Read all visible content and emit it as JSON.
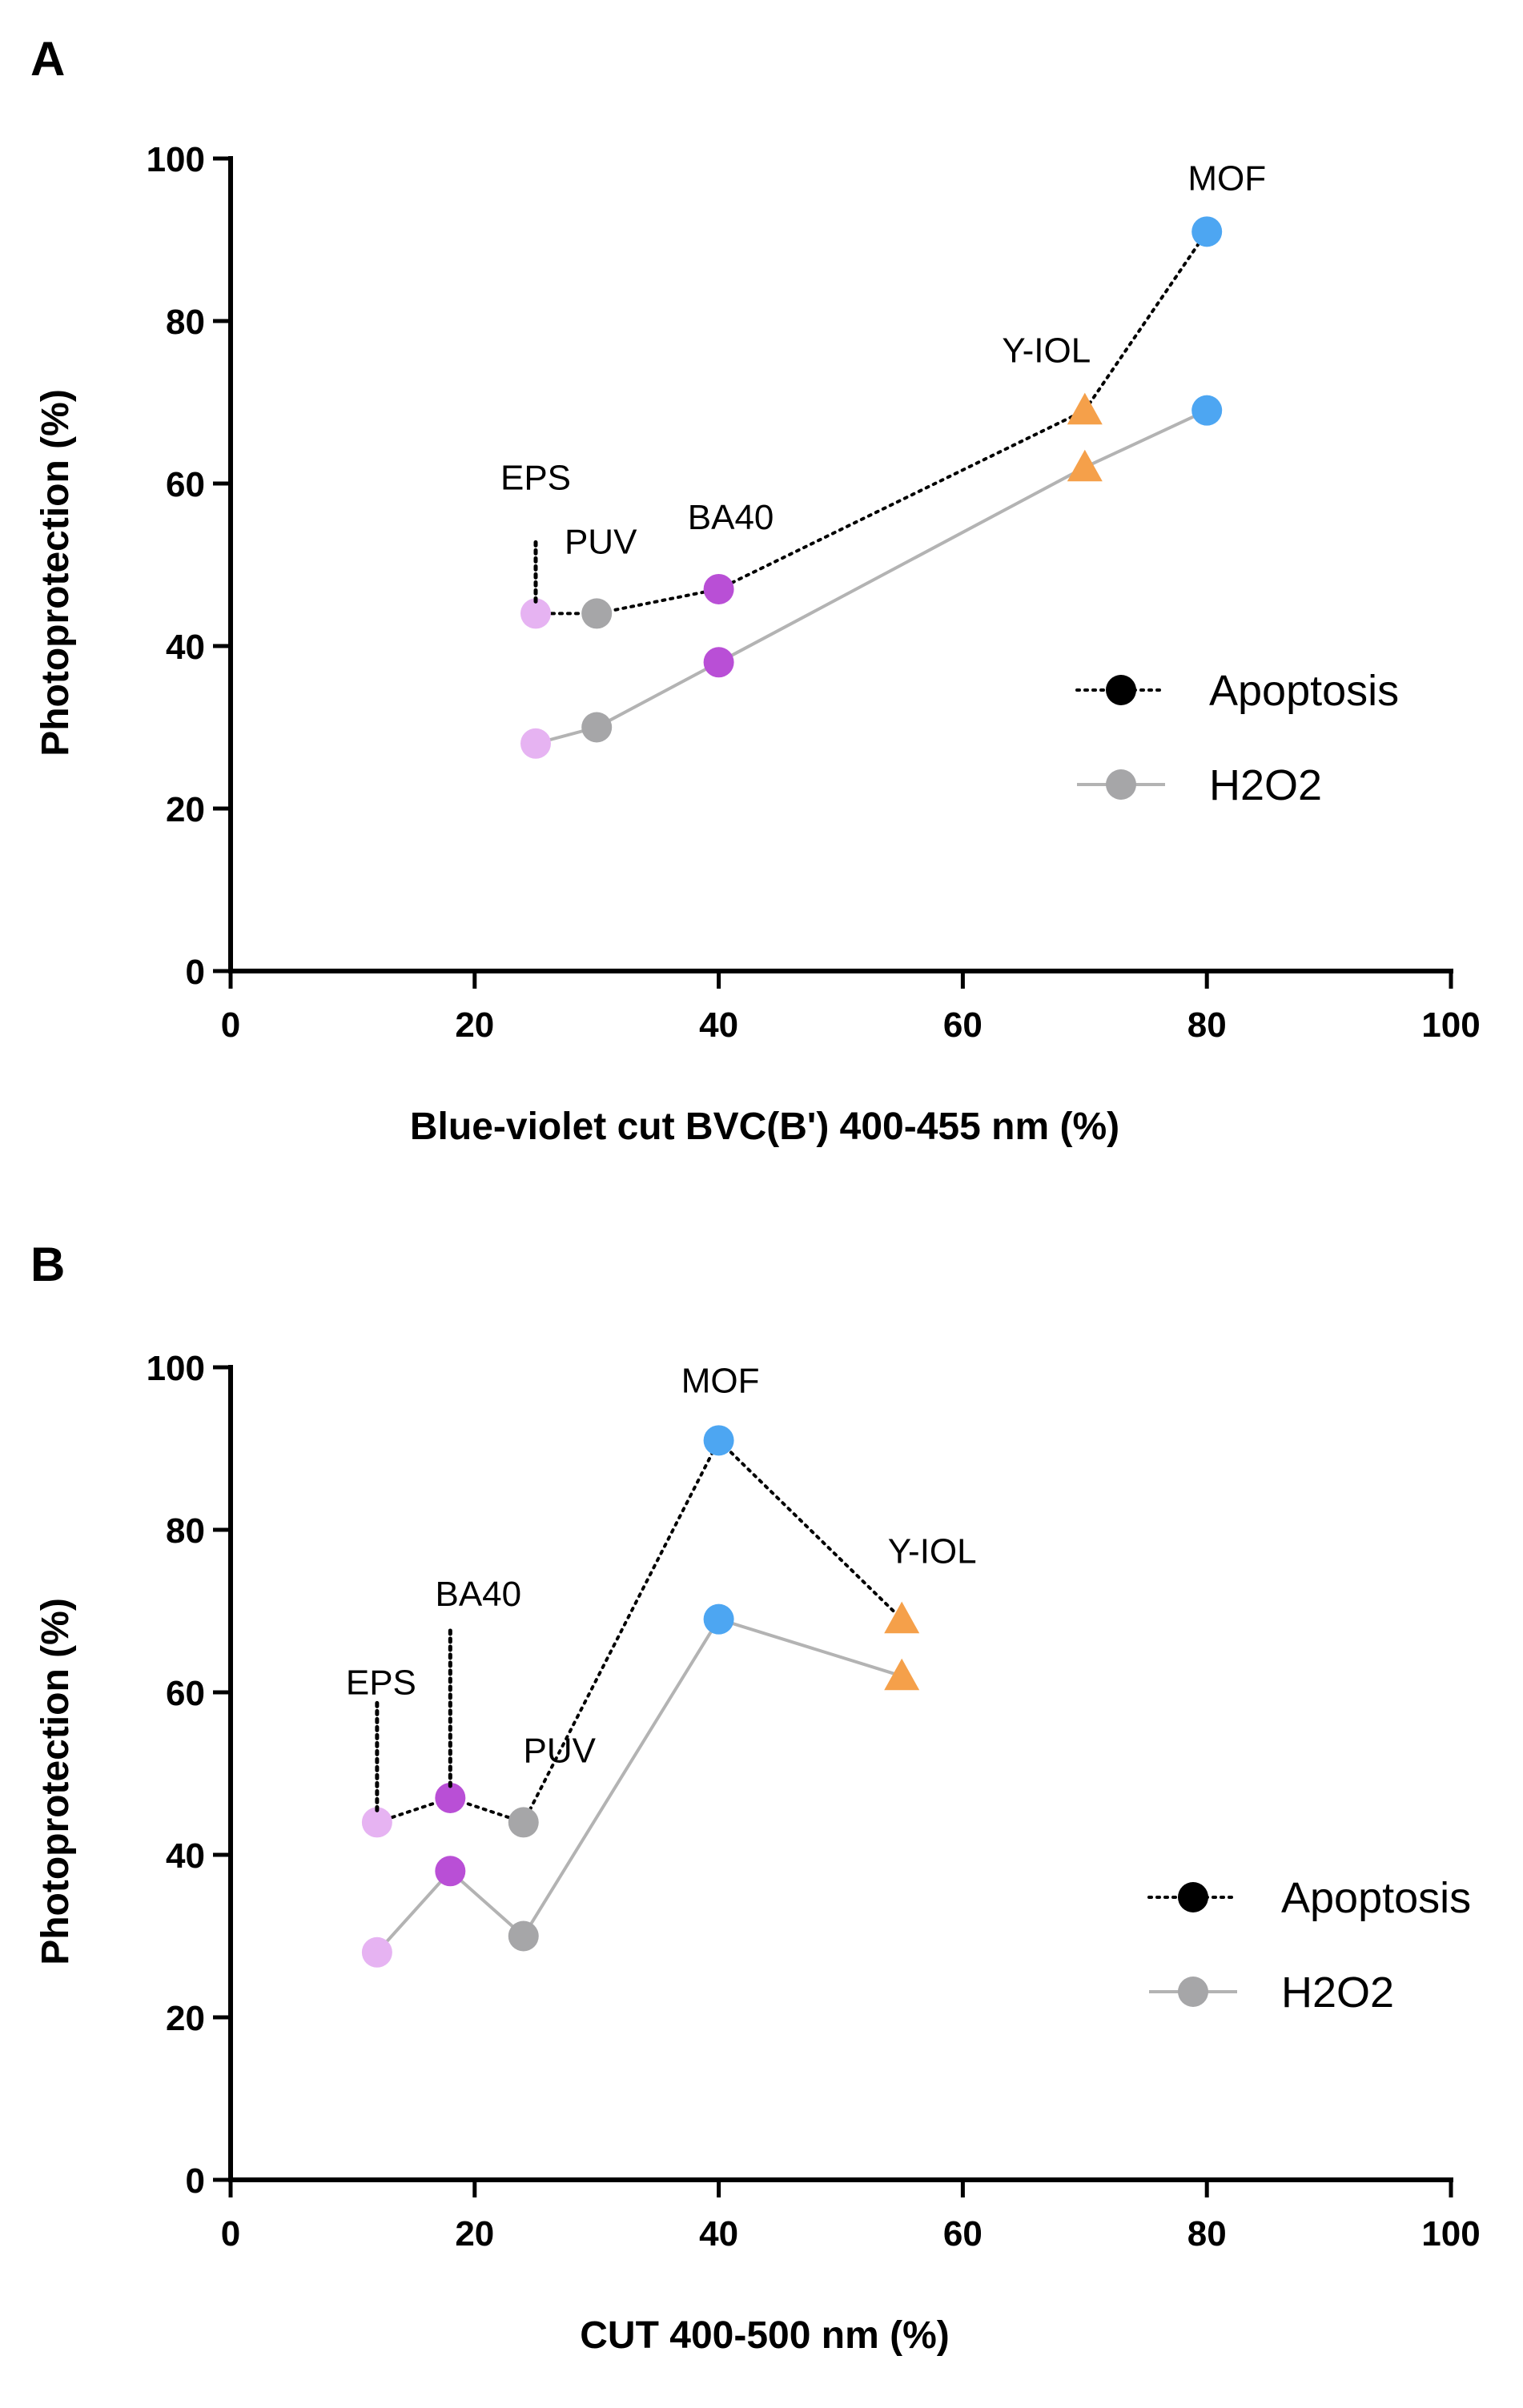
{
  "colors": {
    "EPS": "#E6B3F2",
    "PUV": "#A6A6A8",
    "BA40": "#B94FD6",
    "Y-IOL": "#F5A04A",
    "MOF": "#4DA6F2",
    "apoptosis_line": "#000000",
    "h2o2_line": "#B3B3B3",
    "legend_apoptosis_marker": "#000000",
    "legend_h2o2_marker": "#A6A6A8"
  },
  "chart_data": [
    {
      "panel": "A",
      "type": "line",
      "xlabel": "Blue-violet cut BVC(B') 400-455 nm (%)",
      "ylabel": "Photoprotection (%)",
      "xlim": [
        0,
        100
      ],
      "ylim": [
        0,
        100
      ],
      "xticks": [
        "0",
        "20",
        "40",
        "60",
        "80",
        "100"
      ],
      "yticks": [
        "0",
        "20",
        "40",
        "60",
        "80",
        "100"
      ],
      "legend_position": "center-right",
      "legend": [
        "Apoptosis",
        "H2O2"
      ],
      "series": [
        {
          "name": "Apoptosis",
          "style": "dotted",
          "points": [
            {
              "lens": "EPS",
              "x": 25,
              "y": 44
            },
            {
              "lens": "PUV",
              "x": 30,
              "y": 44
            },
            {
              "lens": "BA40",
              "x": 40,
              "y": 47
            },
            {
              "lens": "Y-IOL",
              "x": 70,
              "y": 69
            },
            {
              "lens": "MOF",
              "x": 80,
              "y": 91
            }
          ]
        },
        {
          "name": "H2O2",
          "style": "solid",
          "points": [
            {
              "lens": "EPS",
              "x": 25,
              "y": 28
            },
            {
              "lens": "PUV",
              "x": 30,
              "y": 30
            },
            {
              "lens": "BA40",
              "x": 40,
              "y": 38
            },
            {
              "lens": "Y-IOL",
              "x": 70,
              "y": 62
            },
            {
              "lens": "MOF",
              "x": 80,
              "y": 69
            }
          ]
        }
      ],
      "annotations": [
        {
          "text": "EPS",
          "lens": "EPS"
        },
        {
          "text": "PUV",
          "lens": "PUV"
        },
        {
          "text": "BA40",
          "lens": "BA40"
        },
        {
          "text": "Y-IOL",
          "lens": "Y-IOL"
        },
        {
          "text": "MOF",
          "lens": "MOF"
        }
      ]
    },
    {
      "panel": "B",
      "type": "line",
      "xlabel": "CUT 400-500 nm (%)",
      "ylabel": "Photoprotection (%)",
      "xlim": [
        0,
        100
      ],
      "ylim": [
        0,
        100
      ],
      "xticks": [
        "0",
        "20",
        "40",
        "60",
        "80",
        "100"
      ],
      "yticks": [
        "0",
        "20",
        "40",
        "60",
        "80",
        "100"
      ],
      "legend_position": "bottom-right",
      "legend": [
        "Apoptosis",
        "H2O2"
      ],
      "series": [
        {
          "name": "Apoptosis",
          "style": "dotted",
          "points": [
            {
              "lens": "EPS",
              "x": 12,
              "y": 44
            },
            {
              "lens": "BA40",
              "x": 18,
              "y": 47
            },
            {
              "lens": "PUV",
              "x": 24,
              "y": 44
            },
            {
              "lens": "MOF",
              "x": 40,
              "y": 91
            },
            {
              "lens": "Y-IOL",
              "x": 55,
              "y": 69
            }
          ]
        },
        {
          "name": "H2O2",
          "style": "solid",
          "points": [
            {
              "lens": "EPS",
              "x": 12,
              "y": 28
            },
            {
              "lens": "BA40",
              "x": 18,
              "y": 38
            },
            {
              "lens": "PUV",
              "x": 24,
              "y": 30
            },
            {
              "lens": "MOF",
              "x": 40,
              "y": 69
            },
            {
              "lens": "Y-IOL",
              "x": 55,
              "y": 62
            }
          ]
        }
      ],
      "annotations": [
        {
          "text": "EPS",
          "lens": "EPS"
        },
        {
          "text": "BA40",
          "lens": "BA40"
        },
        {
          "text": "PUV",
          "lens": "PUV"
        },
        {
          "text": "MOF",
          "lens": "MOF"
        },
        {
          "text": "Y-IOL",
          "lens": "Y-IOL"
        }
      ]
    }
  ]
}
